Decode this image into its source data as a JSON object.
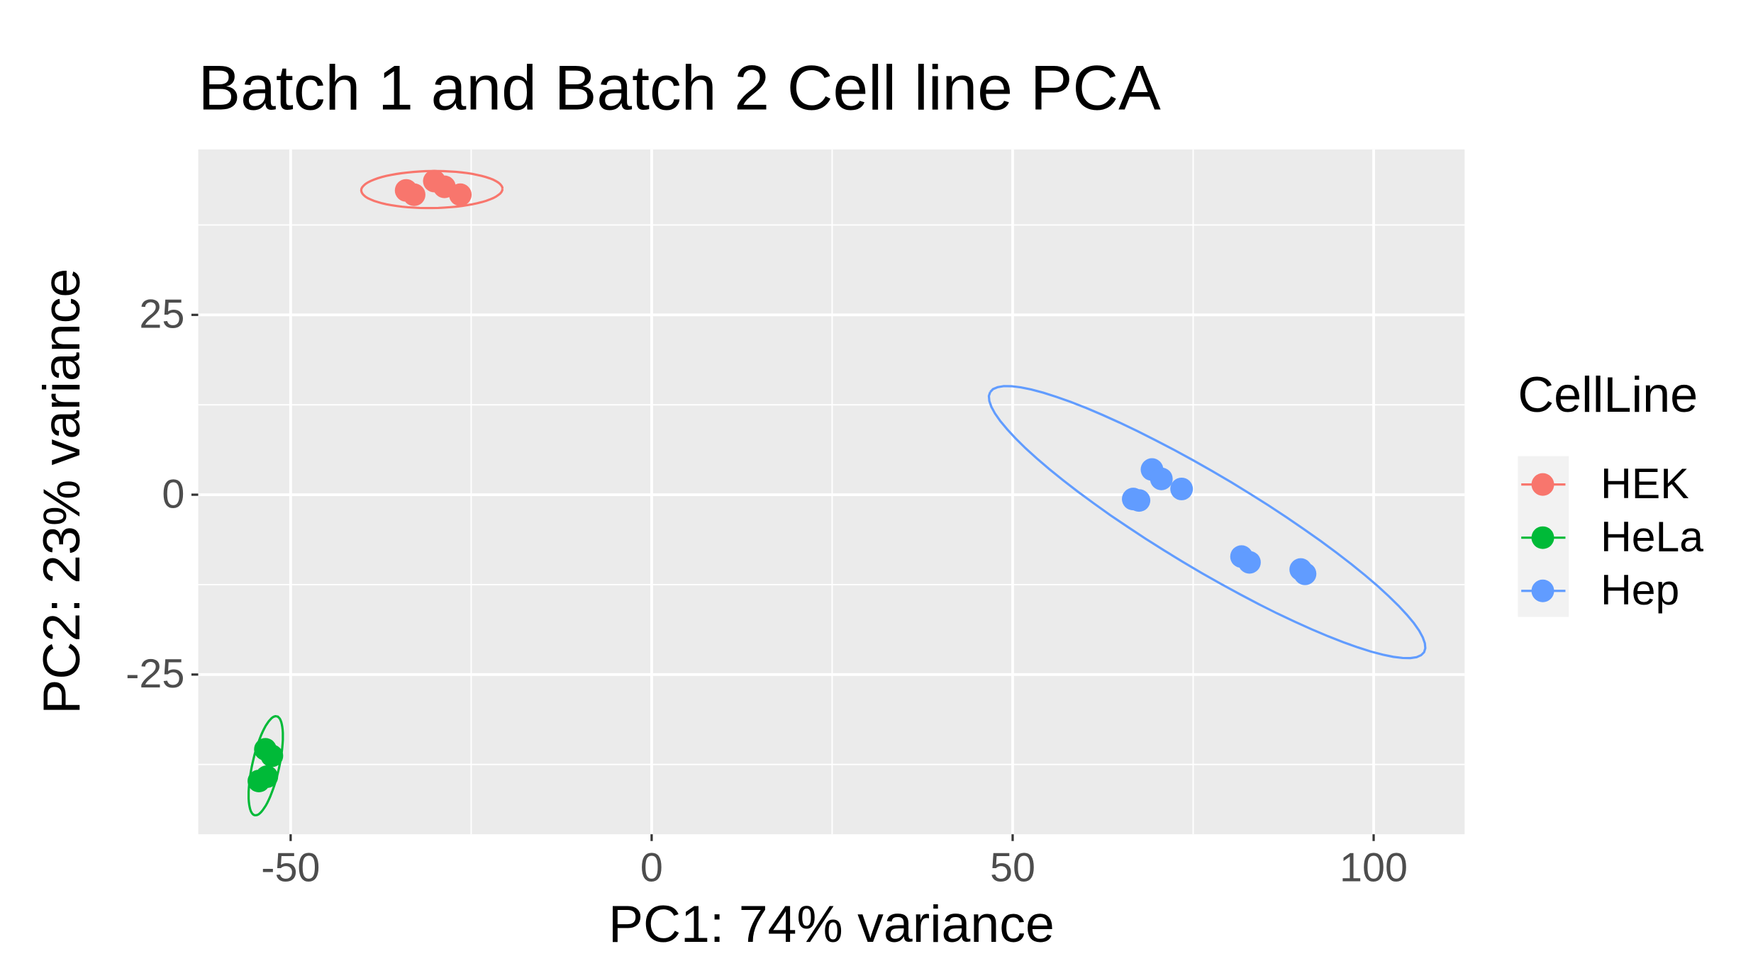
{
  "chart_data": {
    "type": "scatter",
    "title": "Batch 1 and Batch 2 Cell line PCA",
    "x_label": "PC1: 74% variance",
    "y_label": "PC2: 23% variance",
    "legend_title": "CellLine",
    "legend": "right",
    "grid": true,
    "xlim": [
      -62.8,
      112.6
    ],
    "ylim": [
      -47.2,
      48
    ],
    "xticks": [
      -50,
      0,
      50,
      100
    ],
    "yticks": [
      -25,
      0,
      25
    ],
    "series": [
      {
        "name": "HEK",
        "color": "#F8766D",
        "x": [
          -34.0,
          -32.9,
          -30.1,
          -28.7,
          -26.5
        ],
        "values": [
          42.3,
          41.7,
          43.6,
          42.8,
          41.7
        ]
      },
      {
        "name": "HeLa",
        "color": "#00BA38",
        "x": [
          -53.5,
          -52.6,
          -54.4,
          -53.3
        ],
        "values": [
          -35.4,
          -36.3,
          -39.8,
          -39.2
        ]
      },
      {
        "name": "Hep",
        "color": "#619CFF",
        "x": [
          69.3,
          70.6,
          73.4,
          66.7,
          67.5,
          81.7,
          82.8,
          89.9,
          90.5
        ],
        "values": [
          3.5,
          2.2,
          0.8,
          -0.6,
          -0.8,
          -8.6,
          -9.4,
          -10.4,
          -11.0
        ]
      }
    ]
  }
}
